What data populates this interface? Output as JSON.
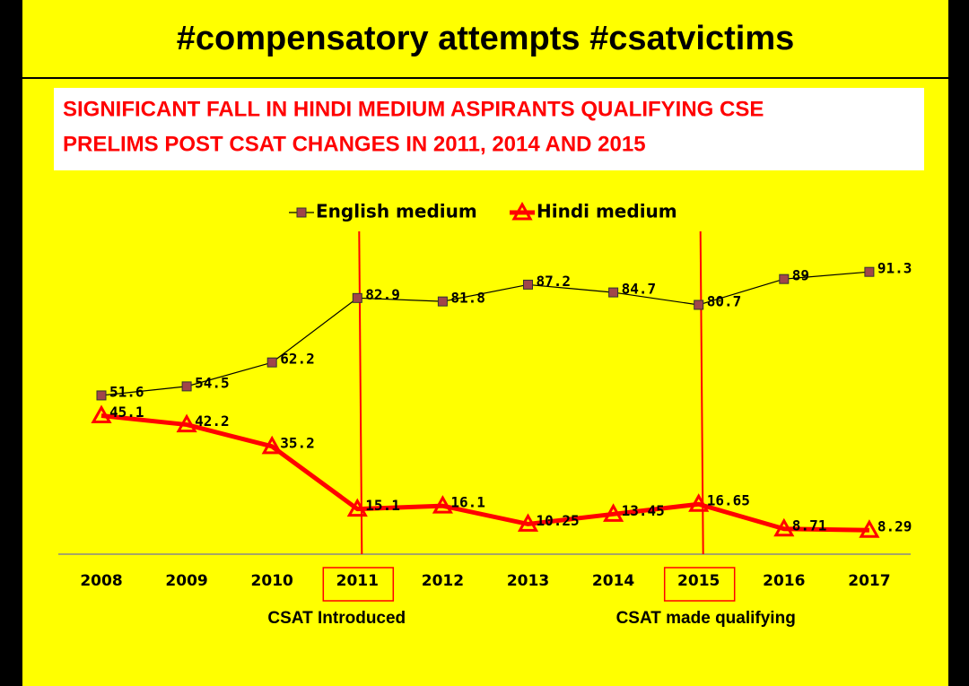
{
  "chart_data": {
    "type": "line",
    "header": "#compensatory attempts  #csatvictims",
    "title_lines": [
      "SIGNIFICANT FALL IN HINDI MEDIUM ASPIRANTS QUALIFYING CSE",
      "PRELIMS POST CSAT CHANGES IN 2011, 2014 AND 2015"
    ],
    "categories": [
      "2008",
      "2009",
      "2010",
      "2011",
      "2012",
      "2013",
      "2014",
      "2015",
      "2016",
      "2017"
    ],
    "series": [
      {
        "name": "English medium",
        "color": "#000000",
        "marker_color": "#a0464a",
        "marker": "square",
        "values": [
          51.6,
          54.5,
          62.2,
          82.9,
          81.8,
          87.2,
          84.7,
          80.7,
          89,
          91.3
        ]
      },
      {
        "name": "Hindi medium",
        "color": "#ff0000",
        "marker_color": "#ff0000",
        "marker": "triangle",
        "values": [
          45.1,
          42.2,
          35.2,
          15.1,
          16.1,
          10.25,
          13.45,
          16.65,
          8.71,
          8.29
        ]
      }
    ],
    "ylim": [
      0,
      100
    ],
    "annotations": [
      {
        "x": "2011",
        "text": "CSAT Introduced"
      },
      {
        "x": "2015",
        "text": "CSAT made qualifying"
      }
    ]
  }
}
